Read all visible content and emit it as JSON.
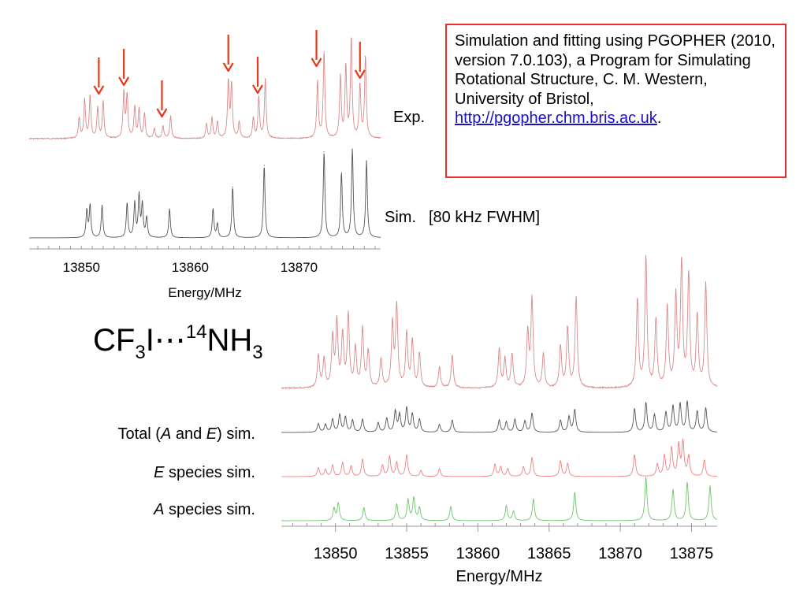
{
  "reference": {
    "text": "Simulation and fitting using PGOPHER (2010, version 7.0.103), a Program for Simulating Rotational Structure, C. M. Western, University of Bristol, ",
    "link": "http://pgopher.chm.bris.ac.uk",
    "suffix": "."
  },
  "compound": {
    "base1": "CF",
    "sub1": "3",
    "mid": "I⋯",
    "sup": "14",
    "base2": "NH",
    "sub2": "3"
  },
  "labels": {
    "exp": "Exp.",
    "sim": "Sim.",
    "fwhm": "[80 kHz FWHM]",
    "total_pre": "Total (",
    "total_a": "A",
    "total_and": " and ",
    "total_e": "E",
    "total_post": ") sim.",
    "e_species_letter": "E",
    "e_species_rest": " species sim.",
    "a_species_letter": "A",
    "a_species_rest": " species sim."
  },
  "colors": {
    "experimental": "#d98a8a",
    "simulation": "#555555",
    "e_species": "#f08080",
    "a_species": "#6cc66c",
    "arrow": "#e23a1a",
    "box_border": "#e8302a",
    "link": "#1a0dcc"
  },
  "chart_data": [
    {
      "type": "line",
      "title": "",
      "xlabel": "Energy/MHz",
      "ylabel": "",
      "xlim": [
        13845.2,
        13877.5
      ],
      "xticks": [
        13850,
        13860,
        13870
      ],
      "grid": false,
      "series": [
        {
          "name": "Exp.",
          "color": "#d98a8a",
          "peaks": [
            {
              "x": 13849.8,
              "h": 0.2
            },
            {
              "x": 13850.3,
              "h": 0.38
            },
            {
              "x": 13850.8,
              "h": 0.42
            },
            {
              "x": 13851.5,
              "h": 0.3
            },
            {
              "x": 13852.0,
              "h": 0.36
            },
            {
              "x": 13853.9,
              "h": 0.45
            },
            {
              "x": 13854.2,
              "h": 0.42
            },
            {
              "x": 13854.9,
              "h": 0.3
            },
            {
              "x": 13855.3,
              "h": 0.28
            },
            {
              "x": 13855.8,
              "h": 0.24
            },
            {
              "x": 13856.7,
              "h": 0.1
            },
            {
              "x": 13857.5,
              "h": 0.12
            },
            {
              "x": 13858.2,
              "h": 0.22
            },
            {
              "x": 13861.5,
              "h": 0.14
            },
            {
              "x": 13862.0,
              "h": 0.2
            },
            {
              "x": 13862.5,
              "h": 0.16
            },
            {
              "x": 13863.5,
              "h": 0.55
            },
            {
              "x": 13863.8,
              "h": 0.52
            },
            {
              "x": 13864.5,
              "h": 0.16
            },
            {
              "x": 13865.8,
              "h": 0.2
            },
            {
              "x": 13866.3,
              "h": 0.4
            },
            {
              "x": 13866.9,
              "h": 0.58
            },
            {
              "x": 13871.7,
              "h": 0.55
            },
            {
              "x": 13872.3,
              "h": 0.85
            },
            {
              "x": 13873.8,
              "h": 0.6
            },
            {
              "x": 13874.3,
              "h": 0.7
            },
            {
              "x": 13874.8,
              "h": 0.98
            },
            {
              "x": 13875.6,
              "h": 0.52
            },
            {
              "x": 13876.1,
              "h": 0.8
            }
          ]
        },
        {
          "name": "Sim.",
          "color": "#555555",
          "peaks": [
            {
              "x": 13850.5,
              "h": 0.3
            },
            {
              "x": 13850.8,
              "h": 0.36
            },
            {
              "x": 13851.9,
              "h": 0.36
            },
            {
              "x": 13854.2,
              "h": 0.38
            },
            {
              "x": 13854.9,
              "h": 0.38
            },
            {
              "x": 13855.3,
              "h": 0.46
            },
            {
              "x": 13855.6,
              "h": 0.36
            },
            {
              "x": 13856.0,
              "h": 0.22
            },
            {
              "x": 13858.1,
              "h": 0.32
            },
            {
              "x": 13862.1,
              "h": 0.32
            },
            {
              "x": 13862.5,
              "h": 0.15
            },
            {
              "x": 13863.9,
              "h": 0.56
            },
            {
              "x": 13866.8,
              "h": 0.8
            },
            {
              "x": 13872.3,
              "h": 0.95
            },
            {
              "x": 13873.9,
              "h": 0.72
            },
            {
              "x": 13874.9,
              "h": 0.98
            },
            {
              "x": 13876.2,
              "h": 0.85
            }
          ]
        }
      ],
      "annotations": [
        {
          "type": "arrow",
          "x": 13851.6
        },
        {
          "type": "arrow",
          "x": 13853.9
        },
        {
          "type": "arrow",
          "x": 13857.4
        },
        {
          "type": "arrow",
          "x": 13863.5
        },
        {
          "type": "arrow",
          "x": 13866.2
        },
        {
          "type": "arrow",
          "x": 13871.6
        },
        {
          "type": "arrow",
          "x": 13875.6
        }
      ]
    },
    {
      "type": "line",
      "title": "",
      "xlabel": "Energy/MHz",
      "ylabel": "",
      "xlim": [
        13846.2,
        13876.8
      ],
      "xticks": [
        13850,
        13855,
        13860,
        13865,
        13870,
        13875
      ],
      "grid": false,
      "series": [
        {
          "name": "Exp.",
          "color": "#d98a8a",
          "peaks": [
            {
              "x": 13848.8,
              "h": 0.25
            },
            {
              "x": 13849.2,
              "h": 0.22
            },
            {
              "x": 13849.8,
              "h": 0.38
            },
            {
              "x": 13850.1,
              "h": 0.5
            },
            {
              "x": 13850.5,
              "h": 0.4
            },
            {
              "x": 13850.9,
              "h": 0.55
            },
            {
              "x": 13851.4,
              "h": 0.3
            },
            {
              "x": 13851.9,
              "h": 0.45
            },
            {
              "x": 13852.3,
              "h": 0.28
            },
            {
              "x": 13853.2,
              "h": 0.22
            },
            {
              "x": 13854.0,
              "h": 0.48
            },
            {
              "x": 13854.3,
              "h": 0.62
            },
            {
              "x": 13855.0,
              "h": 0.42
            },
            {
              "x": 13855.4,
              "h": 0.36
            },
            {
              "x": 13855.9,
              "h": 0.26
            },
            {
              "x": 13857.3,
              "h": 0.16
            },
            {
              "x": 13858.2,
              "h": 0.25
            },
            {
              "x": 13861.5,
              "h": 0.3
            },
            {
              "x": 13861.9,
              "h": 0.22
            },
            {
              "x": 13862.4,
              "h": 0.26
            },
            {
              "x": 13863.5,
              "h": 0.42
            },
            {
              "x": 13863.8,
              "h": 0.68
            },
            {
              "x": 13864.6,
              "h": 0.26
            },
            {
              "x": 13865.8,
              "h": 0.32
            },
            {
              "x": 13866.3,
              "h": 0.46
            },
            {
              "x": 13866.9,
              "h": 0.7
            },
            {
              "x": 13871.2,
              "h": 0.68
            },
            {
              "x": 13871.8,
              "h": 1.0
            },
            {
              "x": 13872.5,
              "h": 0.52
            },
            {
              "x": 13873.3,
              "h": 0.62
            },
            {
              "x": 13873.9,
              "h": 0.7
            },
            {
              "x": 13874.3,
              "h": 0.95
            },
            {
              "x": 13874.8,
              "h": 0.86
            },
            {
              "x": 13875.4,
              "h": 0.55
            },
            {
              "x": 13876.0,
              "h": 0.8
            }
          ]
        },
        {
          "name": "Total (A and E) sim.",
          "color": "#555555",
          "peaks": [
            {
              "x": 13848.8,
              "h": 0.2
            },
            {
              "x": 13849.3,
              "h": 0.18
            },
            {
              "x": 13849.8,
              "h": 0.3
            },
            {
              "x": 13850.3,
              "h": 0.4
            },
            {
              "x": 13850.7,
              "h": 0.35
            },
            {
              "x": 13851.2,
              "h": 0.28
            },
            {
              "x": 13851.9,
              "h": 0.3
            },
            {
              "x": 13853.0,
              "h": 0.22
            },
            {
              "x": 13853.6,
              "h": 0.32
            },
            {
              "x": 13854.2,
              "h": 0.48
            },
            {
              "x": 13854.5,
              "h": 0.4
            },
            {
              "x": 13855.0,
              "h": 0.56
            },
            {
              "x": 13855.4,
              "h": 0.42
            },
            {
              "x": 13855.9,
              "h": 0.3
            },
            {
              "x": 13857.3,
              "h": 0.18
            },
            {
              "x": 13858.2,
              "h": 0.28
            },
            {
              "x": 13861.5,
              "h": 0.28
            },
            {
              "x": 13862.0,
              "h": 0.24
            },
            {
              "x": 13862.6,
              "h": 0.3
            },
            {
              "x": 13863.3,
              "h": 0.26
            },
            {
              "x": 13863.8,
              "h": 0.44
            },
            {
              "x": 13865.8,
              "h": 0.28
            },
            {
              "x": 13866.4,
              "h": 0.36
            },
            {
              "x": 13866.8,
              "h": 0.52
            },
            {
              "x": 13871.0,
              "h": 0.54
            },
            {
              "x": 13871.8,
              "h": 0.68
            },
            {
              "x": 13872.4,
              "h": 0.4
            },
            {
              "x": 13873.2,
              "h": 0.46
            },
            {
              "x": 13873.7,
              "h": 0.6
            },
            {
              "x": 13874.2,
              "h": 0.65
            },
            {
              "x": 13874.7,
              "h": 0.7
            },
            {
              "x": 13875.4,
              "h": 0.48
            },
            {
              "x": 13876.0,
              "h": 0.56
            }
          ]
        },
        {
          "name": "E species sim.",
          "color": "#f08080",
          "peaks": [
            {
              "x": 13848.8,
              "h": 0.2
            },
            {
              "x": 13849.3,
              "h": 0.16
            },
            {
              "x": 13849.8,
              "h": 0.26
            },
            {
              "x": 13850.5,
              "h": 0.32
            },
            {
              "x": 13851.1,
              "h": 0.24
            },
            {
              "x": 13851.9,
              "h": 0.4
            },
            {
              "x": 13853.3,
              "h": 0.26
            },
            {
              "x": 13853.8,
              "h": 0.46
            },
            {
              "x": 13854.3,
              "h": 0.32
            },
            {
              "x": 13855.0,
              "h": 0.5
            },
            {
              "x": 13856.0,
              "h": 0.14
            },
            {
              "x": 13857.3,
              "h": 0.18
            },
            {
              "x": 13861.2,
              "h": 0.28
            },
            {
              "x": 13861.6,
              "h": 0.22
            },
            {
              "x": 13862.1,
              "h": 0.18
            },
            {
              "x": 13863.2,
              "h": 0.22
            },
            {
              "x": 13863.8,
              "h": 0.44
            },
            {
              "x": 13865.8,
              "h": 0.36
            },
            {
              "x": 13866.3,
              "h": 0.3
            },
            {
              "x": 13871.0,
              "h": 0.5
            },
            {
              "x": 13872.6,
              "h": 0.28
            },
            {
              "x": 13873.1,
              "h": 0.48
            },
            {
              "x": 13873.6,
              "h": 0.65
            },
            {
              "x": 13874.1,
              "h": 0.72
            },
            {
              "x": 13874.4,
              "h": 0.78
            },
            {
              "x": 13874.8,
              "h": 0.46
            },
            {
              "x": 13875.9,
              "h": 0.38
            }
          ]
        },
        {
          "name": "A species sim.",
          "color": "#6cc66c",
          "peaks": [
            {
              "x": 13849.9,
              "h": 0.28
            },
            {
              "x": 13850.2,
              "h": 0.4
            },
            {
              "x": 13852.0,
              "h": 0.3
            },
            {
              "x": 13854.3,
              "h": 0.38
            },
            {
              "x": 13855.1,
              "h": 0.48
            },
            {
              "x": 13855.5,
              "h": 0.52
            },
            {
              "x": 13855.9,
              "h": 0.3
            },
            {
              "x": 13858.1,
              "h": 0.32
            },
            {
              "x": 13862.0,
              "h": 0.34
            },
            {
              "x": 13862.5,
              "h": 0.22
            },
            {
              "x": 13863.9,
              "h": 0.5
            },
            {
              "x": 13866.8,
              "h": 0.65
            },
            {
              "x": 13871.8,
              "h": 1.0
            },
            {
              "x": 13873.7,
              "h": 0.72
            },
            {
              "x": 13874.7,
              "h": 0.88
            },
            {
              "x": 13876.3,
              "h": 0.8
            }
          ]
        }
      ]
    }
  ]
}
